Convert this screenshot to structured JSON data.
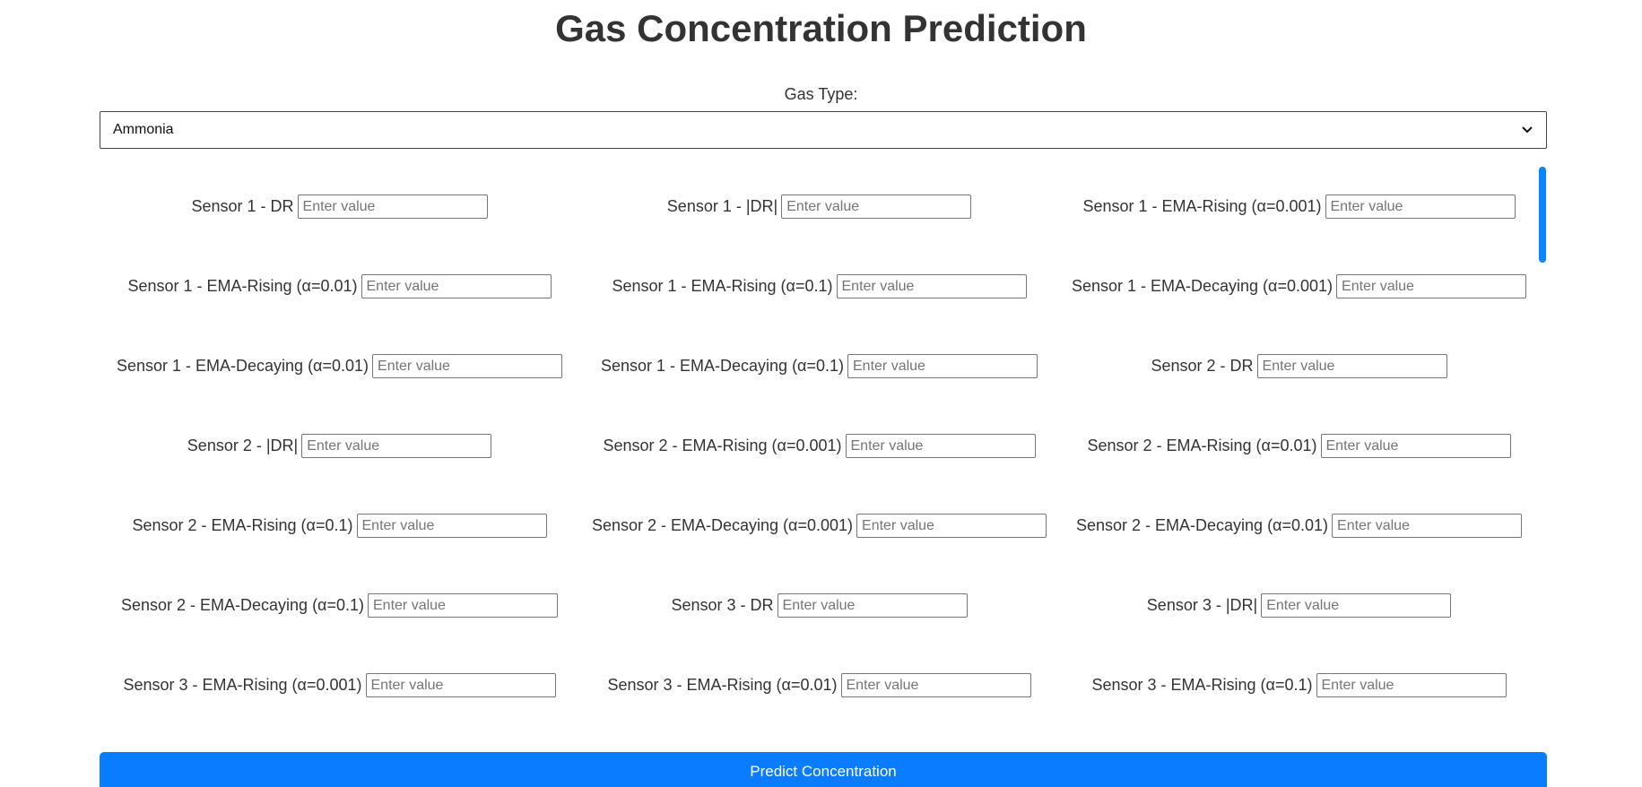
{
  "page": {
    "title": "Gas Concentration Prediction"
  },
  "gas_type": {
    "label": "Gas Type:",
    "selected": "Ammonia"
  },
  "fields": [
    {
      "label": "Sensor 1 - DR",
      "placeholder": "Enter value"
    },
    {
      "label": "Sensor 1 - |DR|",
      "placeholder": "Enter value"
    },
    {
      "label": "Sensor 1 - EMA-Rising (α=0.001)",
      "placeholder": "Enter value"
    },
    {
      "label": "Sensor 1 - EMA-Rising (α=0.01)",
      "placeholder": "Enter value"
    },
    {
      "label": "Sensor 1 - EMA-Rising (α=0.1)",
      "placeholder": "Enter value"
    },
    {
      "label": "Sensor 1 - EMA-Decaying (α=0.001)",
      "placeholder": "Enter value"
    },
    {
      "label": "Sensor 1 - EMA-Decaying (α=0.01)",
      "placeholder": "Enter value"
    },
    {
      "label": "Sensor 1 - EMA-Decaying (α=0.1)",
      "placeholder": "Enter value"
    },
    {
      "label": "Sensor 2 - DR",
      "placeholder": "Enter value"
    },
    {
      "label": "Sensor 2 - |DR|",
      "placeholder": "Enter value"
    },
    {
      "label": "Sensor 2 - EMA-Rising (α=0.001)",
      "placeholder": "Enter value"
    },
    {
      "label": "Sensor 2 - EMA-Rising (α=0.01)",
      "placeholder": "Enter value"
    },
    {
      "label": "Sensor 2 - EMA-Rising (α=0.1)",
      "placeholder": "Enter value"
    },
    {
      "label": "Sensor 2 - EMA-Decaying (α=0.001)",
      "placeholder": "Enter value"
    },
    {
      "label": "Sensor 2 - EMA-Decaying (α=0.01)",
      "placeholder": "Enter value"
    },
    {
      "label": "Sensor 2 - EMA-Decaying (α=0.1)",
      "placeholder": "Enter value"
    },
    {
      "label": "Sensor 3 - DR",
      "placeholder": "Enter value"
    },
    {
      "label": "Sensor 3 - |DR|",
      "placeholder": "Enter value"
    },
    {
      "label": "Sensor 3 - EMA-Rising (α=0.001)",
      "placeholder": "Enter value"
    },
    {
      "label": "Sensor 3 - EMA-Rising (α=0.01)",
      "placeholder": "Enter value"
    },
    {
      "label": "Sensor 3 - EMA-Rising (α=0.1)",
      "placeholder": "Enter value"
    }
  ],
  "predict_button": {
    "label": "Predict Concentration"
  },
  "colors": {
    "accent": "#0a7cff",
    "text": "#333333",
    "background": "#ffffff"
  },
  "icons": {
    "select_arrow": "chevron-down-icon"
  }
}
